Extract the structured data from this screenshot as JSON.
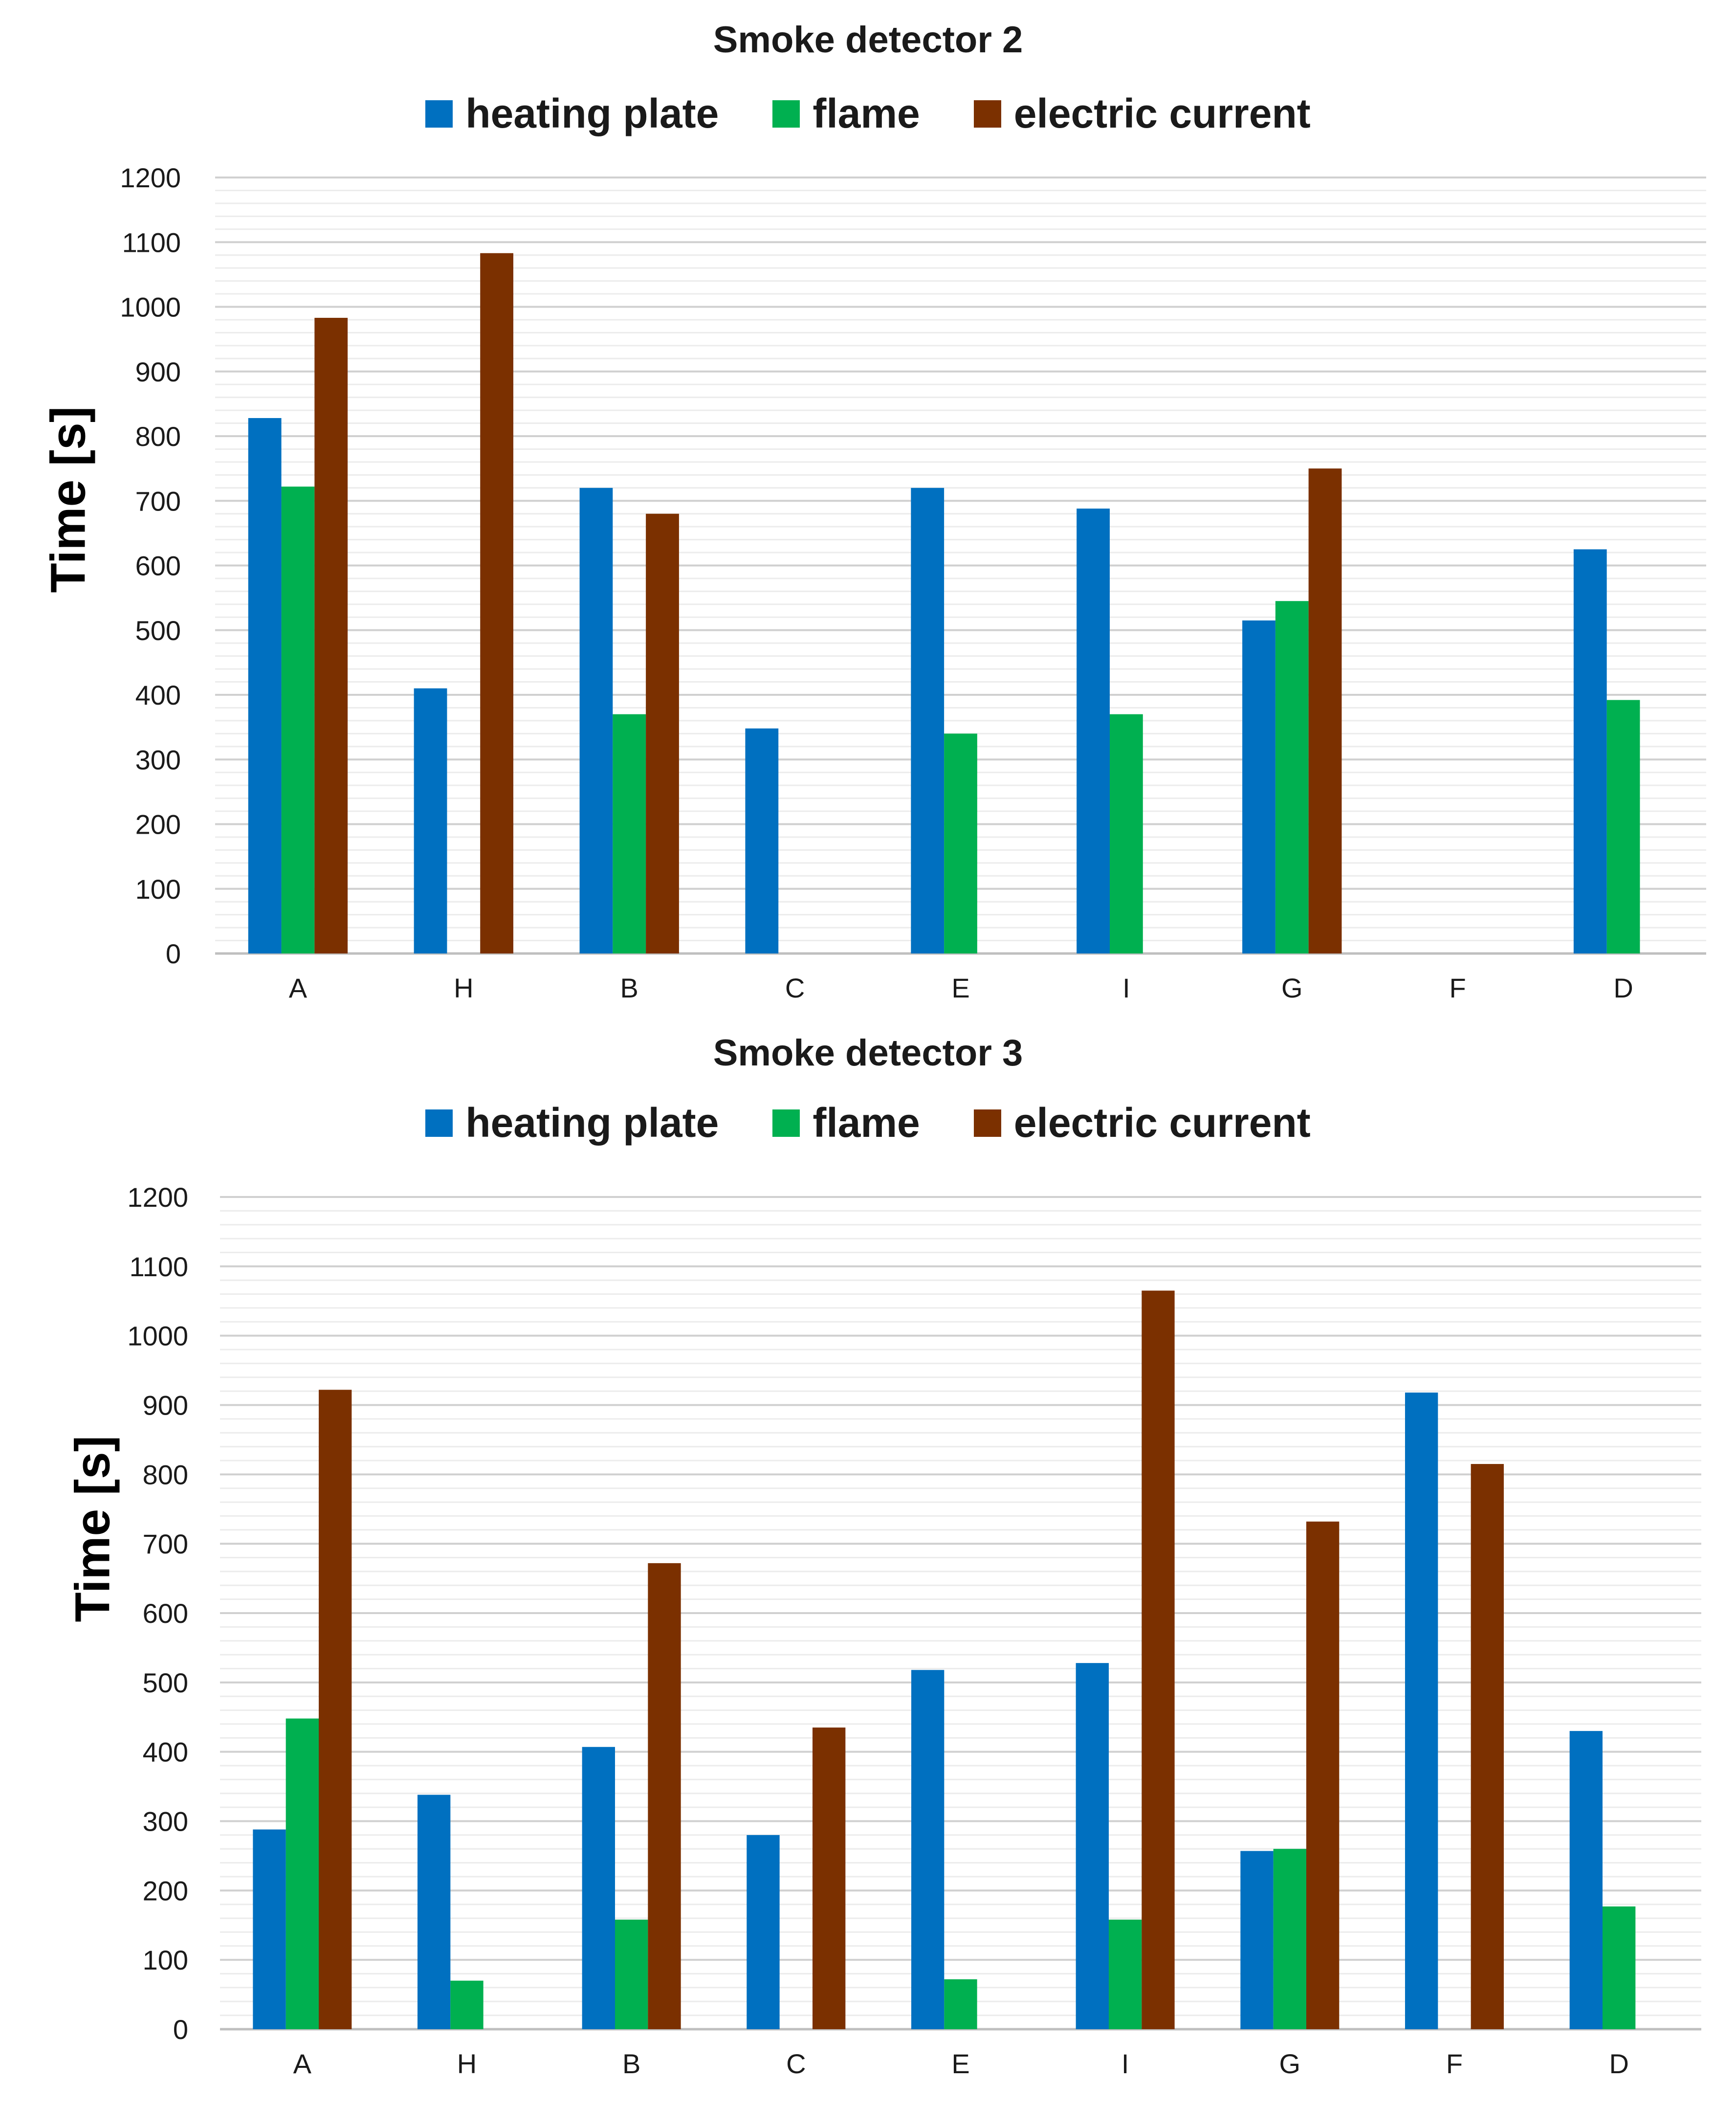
{
  "chart_data": [
    {
      "type": "bar",
      "title": "Smoke detector 2",
      "xlabel": "",
      "ylabel": "Time [s]",
      "ylim": [
        0,
        1200
      ],
      "yticks": [
        0,
        100,
        200,
        300,
        400,
        500,
        600,
        700,
        800,
        900,
        1000,
        1100,
        1200
      ],
      "grid": true,
      "legend_position": "top-center",
      "categories": [
        "A",
        "H",
        "B",
        "C",
        "E",
        "I",
        "G",
        "F",
        "D"
      ],
      "series": [
        {
          "name": "heating plate",
          "color": "#0070C0",
          "values": [
            828,
            410,
            720,
            348,
            720,
            688,
            515,
            null,
            625
          ]
        },
        {
          "name": "flame",
          "color": "#00B050",
          "values": [
            722,
            null,
            370,
            null,
            340,
            370,
            545,
            null,
            392
          ]
        },
        {
          "name": "electric current",
          "color": "#7B3000",
          "values": [
            983,
            1083,
            680,
            null,
            null,
            null,
            750,
            null,
            null
          ]
        }
      ]
    },
    {
      "type": "bar",
      "title": "Smoke detector 3",
      "xlabel": "",
      "ylabel": "Time [s]",
      "ylim": [
        0,
        1200
      ],
      "yticks": [
        0,
        100,
        200,
        300,
        400,
        500,
        600,
        700,
        800,
        900,
        1000,
        1100,
        1200
      ],
      "grid": true,
      "legend_position": "top-center",
      "categories": [
        "A",
        "H",
        "B",
        "C",
        "E",
        "I",
        "G",
        "F",
        "D"
      ],
      "series": [
        {
          "name": "heating plate",
          "color": "#0070C0",
          "values": [
            288,
            338,
            407,
            280,
            518,
            528,
            257,
            918,
            430
          ]
        },
        {
          "name": "flame",
          "color": "#00B050",
          "values": [
            448,
            70,
            158,
            null,
            72,
            158,
            260,
            null,
            177
          ]
        },
        {
          "name": "electric current",
          "color": "#7B3000",
          "values": [
            922,
            null,
            672,
            435,
            null,
            1065,
            732,
            815,
            null
          ]
        }
      ]
    }
  ]
}
